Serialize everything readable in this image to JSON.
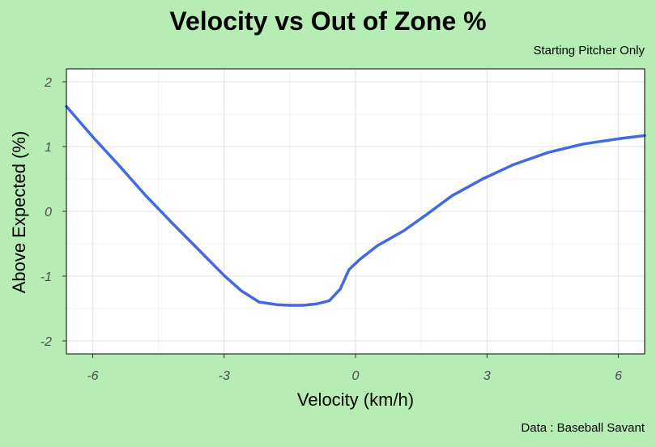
{
  "chart_data": {
    "type": "line",
    "title": "Velocity vs Out of Zone %",
    "subtitle": "Starting Pitcher Only",
    "caption": "Data : Baseball Savant",
    "xlabel": "Velocity (km/h)",
    "ylabel": "Above Expected (%)",
    "xlim": [
      -6.6,
      6.6
    ],
    "ylim": [
      -2.2,
      2.2
    ],
    "xticks": [
      -6,
      -3,
      0,
      3,
      6
    ],
    "xtick_labels": [
      "-6",
      "-3",
      "0",
      "3",
      "6"
    ],
    "yticks": [
      -2,
      -1,
      0,
      1,
      2
    ],
    "ytick_labels": [
      "-2",
      "-1",
      "0",
      "1",
      "2"
    ],
    "grid": true,
    "series": [
      {
        "color": "#4169e1",
        "x": [
          -6.6,
          -6.0,
          -5.4,
          -4.8,
          -4.2,
          -3.6,
          -3.0,
          -2.6,
          -2.2,
          -1.8,
          -1.5,
          -1.2,
          -0.9,
          -0.6,
          -0.35,
          -0.15,
          0.1,
          0.5,
          1.1,
          1.6,
          2.2,
          2.9,
          3.6,
          4.4,
          5.2,
          6.0,
          6.6
        ],
        "y": [
          1.62,
          1.15,
          0.71,
          0.25,
          -0.17,
          -0.58,
          -0.99,
          -1.23,
          -1.4,
          -1.44,
          -1.45,
          -1.45,
          -1.43,
          -1.38,
          -1.2,
          -0.9,
          -0.74,
          -0.53,
          -0.3,
          -0.06,
          0.24,
          0.5,
          0.72,
          0.91,
          1.04,
          1.12,
          1.17
        ]
      }
    ]
  }
}
